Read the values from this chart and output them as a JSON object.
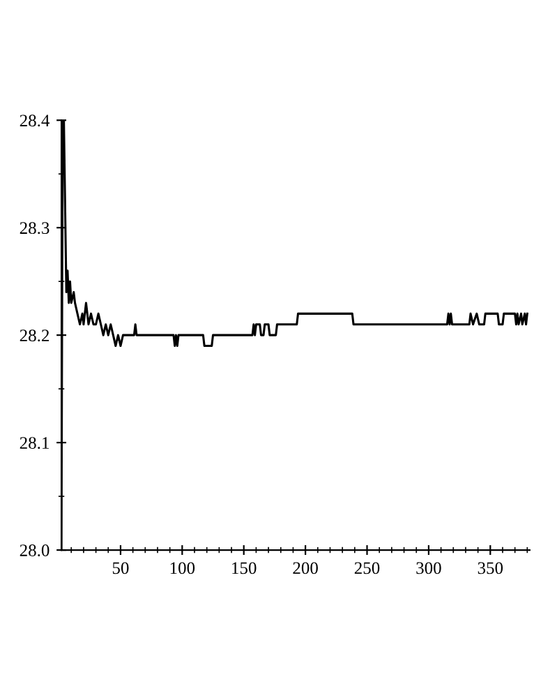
{
  "chart_data": {
    "type": "line",
    "color": "#000000",
    "marker": "none",
    "line_style": "solid",
    "grid": false,
    "legend": false,
    "x": [
      2,
      3,
      4,
      6,
      7,
      8,
      9,
      10,
      12,
      13,
      15,
      17,
      19,
      20,
      22,
      24,
      26,
      28,
      30,
      32,
      34,
      36,
      38,
      40,
      42,
      44,
      46,
      48,
      50,
      52,
      61,
      62,
      63,
      93,
      94,
      95,
      96,
      97,
      117,
      118,
      124,
      125,
      157,
      158,
      159,
      160,
      163,
      164,
      166,
      167,
      170,
      171,
      176,
      177,
      193,
      194,
      238,
      239,
      315,
      316,
      317,
      318,
      319,
      333,
      334,
      336,
      339,
      341,
      345,
      346,
      356,
      357,
      360,
      361,
      370,
      371,
      372,
      373,
      375,
      376,
      378,
      379,
      380
    ],
    "values": [
      28.0,
      28.4,
      28.4,
      28.24,
      28.26,
      28.23,
      28.25,
      28.23,
      28.24,
      28.23,
      28.22,
      28.21,
      28.22,
      28.21,
      28.23,
      28.21,
      28.22,
      28.21,
      28.21,
      28.22,
      28.21,
      28.2,
      28.21,
      28.2,
      28.21,
      28.2,
      28.19,
      28.2,
      28.19,
      28.2,
      28.2,
      28.21,
      28.2,
      28.2,
      28.19,
      28.2,
      28.19,
      28.2,
      28.2,
      28.19,
      28.19,
      28.2,
      28.2,
      28.21,
      28.2,
      28.21,
      28.21,
      28.2,
      28.2,
      28.21,
      28.21,
      28.2,
      28.2,
      28.21,
      28.21,
      28.22,
      28.22,
      28.21,
      28.21,
      28.22,
      28.21,
      28.22,
      28.21,
      28.21,
      28.22,
      28.21,
      28.22,
      28.21,
      28.21,
      28.22,
      28.22,
      28.21,
      28.21,
      28.22,
      28.22,
      28.21,
      28.22,
      28.21,
      28.22,
      28.21,
      28.22,
      28.21,
      28.22
    ],
    "xlim": [
      2,
      382
    ],
    "xticks": [
      50,
      100,
      150,
      200,
      250,
      300,
      350
    ],
    "ylim": [
      28.0,
      28.4
    ],
    "yticks": [
      {
        "value": 28.0,
        "label": "28.0"
      },
      {
        "value": 28.1,
        "label": "28.1"
      },
      {
        "value": 28.2,
        "label": "28.2"
      },
      {
        "value": 28.3,
        "label": "28.3"
      },
      {
        "value": 28.4,
        "label": "28.4"
      }
    ]
  }
}
